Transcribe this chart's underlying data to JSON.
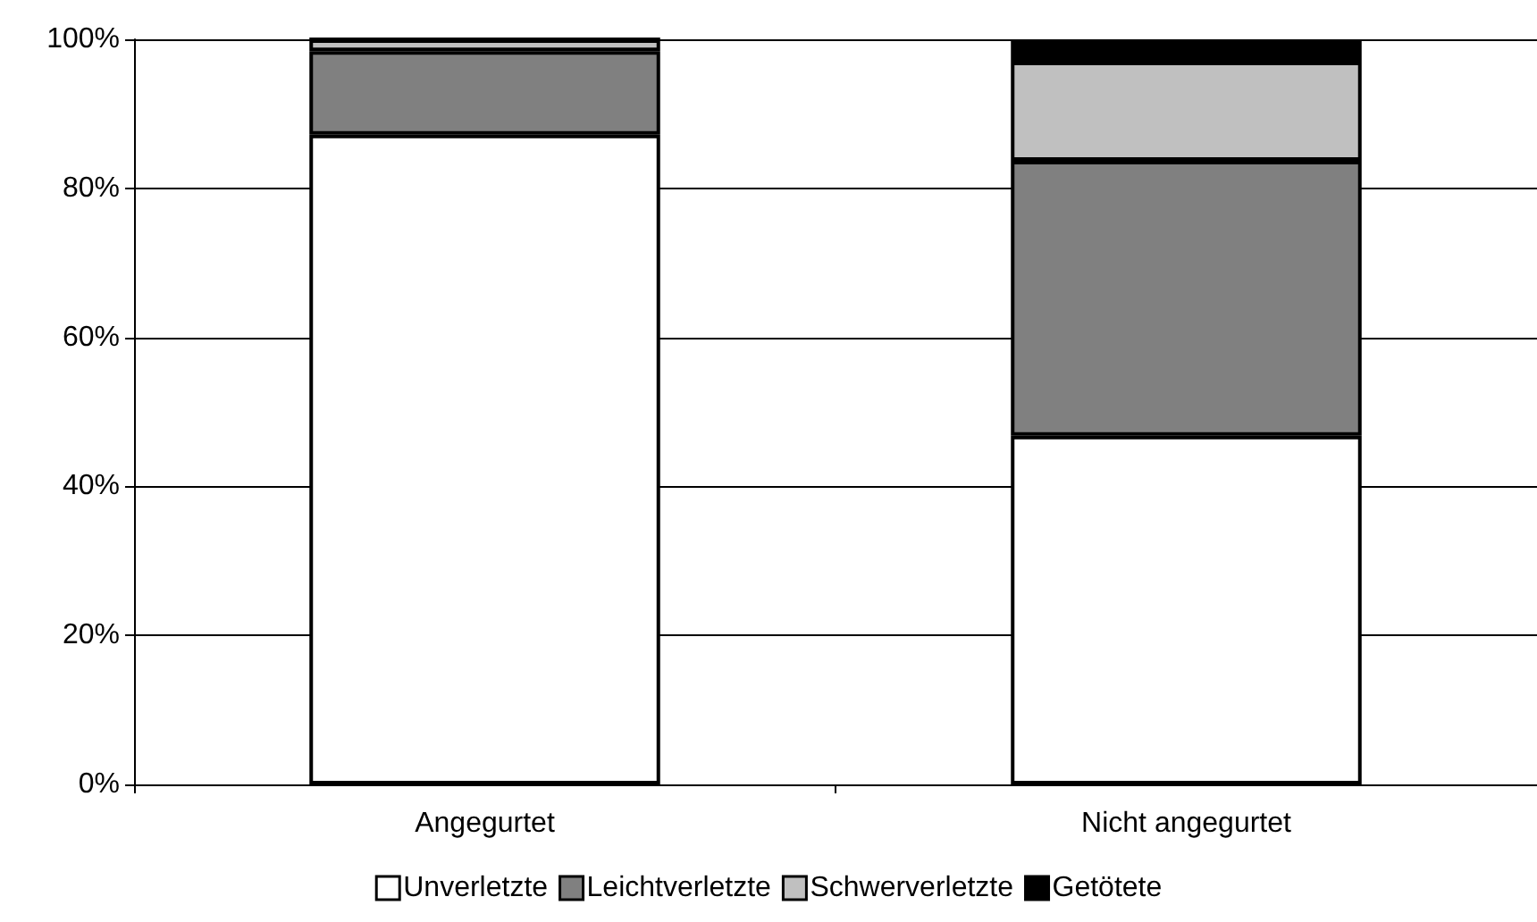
{
  "chart_data": {
    "type": "bar",
    "stacked": true,
    "categories": [
      "Angegurtet",
      "Nicht angegurtet"
    ],
    "series": [
      {
        "name": "Unverletzte",
        "color": "#ffffff",
        "values": [
          87.2,
          46.8
        ]
      },
      {
        "name": "Leichtverletzte",
        "color": "#808080",
        "values": [
          11.2,
          36.9
        ]
      },
      {
        "name": "Schwerverletzte",
        "color": "#c0c0c0",
        "values": [
          1.6,
          13.3
        ]
      },
      {
        "name": "Getötete",
        "color": "#000000",
        "values": [
          0,
          3.0
        ]
      }
    ],
    "ylim": [
      0,
      100
    ],
    "yticks": [
      {
        "value": 0,
        "label": "0%"
      },
      {
        "value": 20,
        "label": "20%"
      },
      {
        "value": 40,
        "label": "40%"
      },
      {
        "value": 60,
        "label": "60%"
      },
      {
        "value": 80,
        "label": "80%"
      },
      {
        "value": 100,
        "label": "100%"
      }
    ],
    "grid": "y",
    "legend": "bottom"
  }
}
